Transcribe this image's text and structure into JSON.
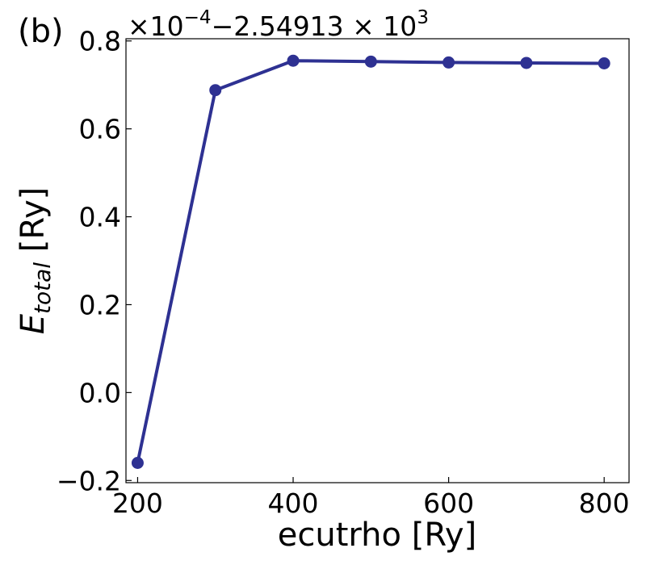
{
  "panel_label": "(b)",
  "offset": {
    "prefix": "×10",
    "exponent": "−4",
    "middle": "−2.54913 × 10",
    "exponent2": "3"
  },
  "chart_data": {
    "type": "line",
    "xlabel": "ecutrho [Ry]",
    "ylabel_main": "E",
    "ylabel_sub": "total",
    "ylabel_unit": " [Ry]",
    "x": [
      200,
      300,
      400,
      500,
      600,
      700,
      800
    ],
    "series": [
      {
        "values": [
          -0.16,
          0.688,
          0.755,
          0.753,
          0.751,
          0.75,
          0.749
        ],
        "color": "#2e3192"
      }
    ],
    "xlim": [
      185,
      832
    ],
    "ylim": [
      -0.205,
      0.805
    ],
    "xticks": [
      200,
      400,
      600,
      800
    ],
    "xtick_labels": [
      "200",
      "400",
      "600",
      "800"
    ],
    "yticks": [
      -0.2,
      0.0,
      0.2,
      0.4,
      0.6,
      0.8
    ],
    "ytick_labels": [
      "−0.2",
      "0.0",
      "0.2",
      "0.4",
      "0.6",
      "0.8"
    ],
    "grid": false,
    "legend": false
  }
}
